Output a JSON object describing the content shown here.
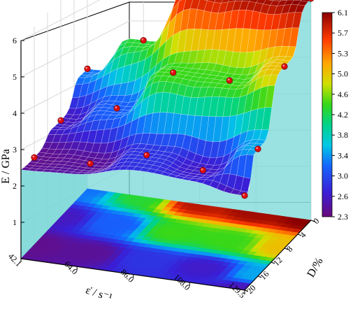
{
  "chart_data": {
    "type": "surface3d",
    "z_axis": {
      "label": "E / GPa",
      "ticks": [
        "1",
        "2",
        "3",
        "4",
        "5",
        "6"
      ]
    },
    "x_axis": {
      "label": "ε̇ / s⁻¹",
      "ticks": [
        "42.1",
        "64.0",
        "86.0",
        "108.0",
        "129.5"
      ],
      "values": [
        42.1,
        64.0,
        86.0,
        108.0,
        129.5
      ]
    },
    "y_axis": {
      "label": "D/%",
      "ticks": [
        "0",
        "4",
        "8",
        "12",
        "16",
        "20"
      ],
      "values": [
        0,
        4,
        8,
        12,
        16,
        20
      ]
    },
    "points": [
      {
        "strain_rate": 42.1,
        "D": 0,
        "E": 3.3
      },
      {
        "strain_rate": 42.1,
        "D": 8,
        "E": 2.65
      },
      {
        "strain_rate": 42.1,
        "D": 16,
        "E": 2.4
      },
      {
        "strain_rate": 64.0,
        "D": 0,
        "E": 4.3
      },
      {
        "strain_rate": 64.0,
        "D": 8,
        "E": 3.2
      },
      {
        "strain_rate": 64.0,
        "D": 16,
        "E": 2.45
      },
      {
        "strain_rate": 86.0,
        "D": 0,
        "E": 5.9
      },
      {
        "strain_rate": 86.0,
        "D": 8,
        "E": 4.4
      },
      {
        "strain_rate": 86.0,
        "D": 16,
        "E": 2.9
      },
      {
        "strain_rate": 108.0,
        "D": 0,
        "E": 6.0
      },
      {
        "strain_rate": 108.0,
        "D": 8,
        "E": 4.4
      },
      {
        "strain_rate": 108.0,
        "D": 16,
        "E": 2.7
      },
      {
        "strain_rate": 129.5,
        "D": 0,
        "E": 6.1
      },
      {
        "strain_rate": 129.5,
        "D": 8,
        "E": 5.0
      },
      {
        "strain_rate": 129.5,
        "D": 16,
        "E": 3.5
      },
      {
        "strain_rate": 129.5,
        "D": 20,
        "E": 2.6
      }
    ],
    "colorbar": {
      "min": 2.3,
      "max": 6.1,
      "ticks": [
        "6.1",
        "5.7",
        "5.3",
        "5.0",
        "4.6",
        "4.2",
        "3.8",
        "3.4",
        "3.0",
        "2.6",
        "2.3"
      ]
    }
  }
}
